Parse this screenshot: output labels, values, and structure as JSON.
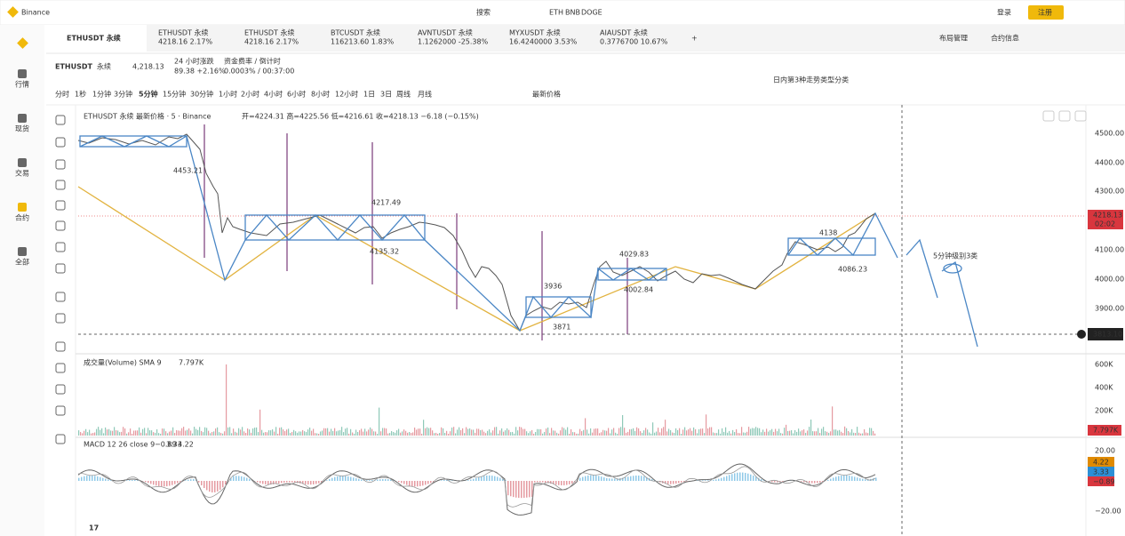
{
  "topbar": {
    "brand": "Binance",
    "search": "搜索",
    "hot": [
      "ETH",
      "BNB",
      "DOGE"
    ],
    "login": "登录",
    "register": "注册"
  },
  "sidebar": [
    "行情",
    "现货",
    "交易",
    "合约",
    "全部"
  ],
  "tabs": [
    {
      "symbol": "ETHUSDT 永续"
    },
    {
      "symbol": "ETHUSDT 永续",
      "quote": "4218.16 2.17%"
    },
    {
      "symbol": "ETHUSDT 永续",
      "quote": "4218.16 2.17%"
    },
    {
      "symbol": "BTCUSDT 永续",
      "quote": "116213.60 1.83%"
    },
    {
      "symbol": "AVNTUSDT 永续",
      "quote": "1.1262000 -25.38%"
    },
    {
      "symbol": "MYXUSDT 永续",
      "quote": "16.4240000 3.53%"
    },
    {
      "symbol": "AIAUSDT 永续",
      "quote": "0.3776700 10.67%"
    }
  ],
  "tab_tools": [
    "布局管理",
    "合约信息"
  ],
  "header": {
    "symbol": "ETHUSDT",
    "contract": "永续",
    "price": "4,218.13",
    "change_label": "24 小时涨跌",
    "change": "89.38 +2.16%",
    "funding_label": "资金费率 / 倒计时",
    "funding": "0.0003% / 00:37:00",
    "note": "日内第3种走势类型分类"
  },
  "intervals": [
    "分时",
    "1秒",
    "1分钟",
    "3分钟",
    "5分钟",
    "15分钟",
    "30分钟",
    "1小时",
    "2小时",
    "4小时",
    "6小时",
    "8小时",
    "12小时",
    "1日",
    "3日",
    "周线",
    "月线"
  ],
  "price_type": "最新价格",
  "legend": {
    "title": "ETHUSDT 永续 最新价格 · 5 · Binance",
    "ohlc": "开=4224.31 高=4225.56 低=4216.61 收=4218.13 −6.18 (−0.15%)"
  },
  "price_axis": [
    "4500.00",
    "4400.00",
    "4300.00",
    "4100.00",
    "4000.00",
    "3900.00"
  ],
  "last_price": "4218.13",
  "countdown": "02:02",
  "crosshair": "3813.10",
  "annotations": [
    "4453.21",
    "4217.49",
    "4135.32",
    "3936",
    "3871",
    "4029.83",
    "4002.84",
    "4138",
    "4086.23",
    "5分钟级别3类"
  ],
  "volume": {
    "legend": "成交量(Volume) SMA 9",
    "value": "7.797K",
    "axis": [
      "600K",
      "400K",
      "200K"
    ]
  },
  "macd": {
    "legend": "MACD 12 26 close 9",
    "values": [
      "−0.89",
      "3.33",
      "4.22"
    ],
    "axis": [
      "20.00",
      "−20.00"
    ]
  }
}
